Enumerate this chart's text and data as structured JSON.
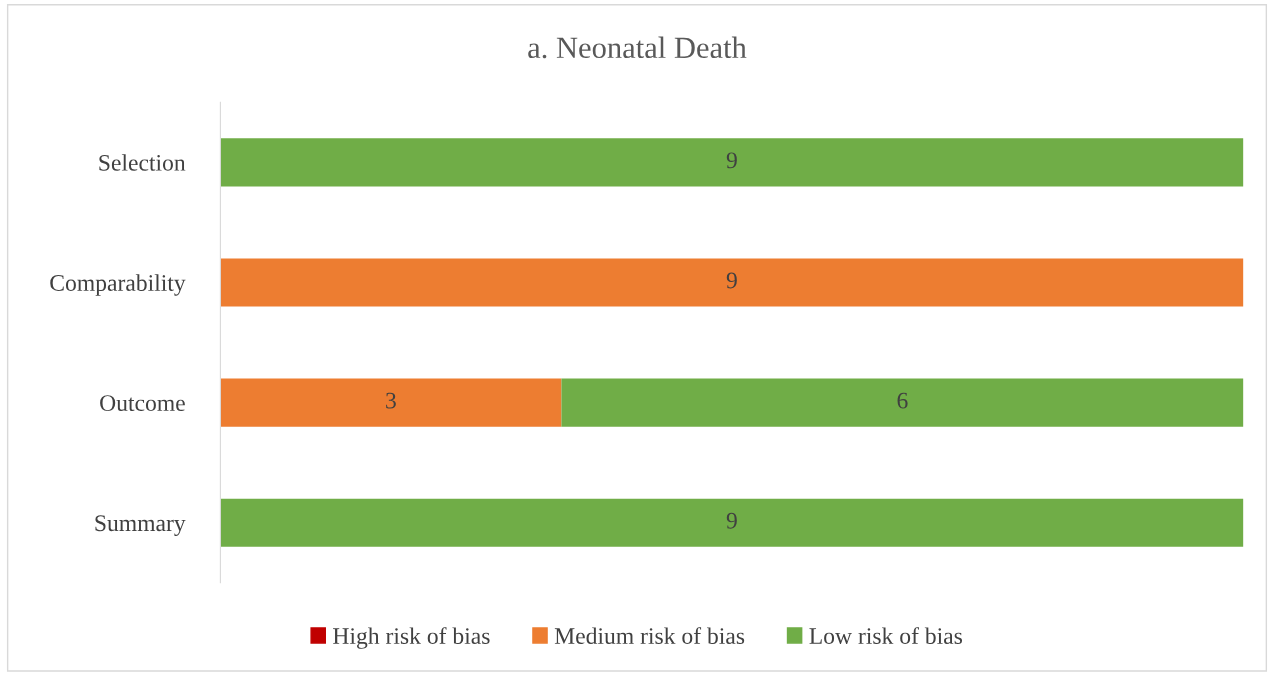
{
  "chart_data": {
    "type": "bar",
    "orientation": "horizontal",
    "stacked": true,
    "title": "a. Neonatal Death",
    "categories": [
      "Selection",
      "Comparability",
      "Outcome",
      "Summary"
    ],
    "series": [
      {
        "name": "High risk of bias",
        "color": "#c00000",
        "values": [
          0,
          0,
          0,
          0
        ],
        "value_labels": [
          null,
          null,
          null,
          null
        ]
      },
      {
        "name": "Medium risk of bias",
        "color": "#ed7d31",
        "values": [
          0,
          9,
          3,
          0
        ],
        "value_labels": [
          null,
          "9",
          "3",
          null
        ]
      },
      {
        "name": "Low risk of bias",
        "color": "#70ad47",
        "values": [
          9,
          0,
          6,
          9
        ],
        "value_labels": [
          "9",
          null,
          "6",
          "9"
        ]
      }
    ],
    "legend": "bottom",
    "tick_labels": "y",
    "grid": false
  }
}
